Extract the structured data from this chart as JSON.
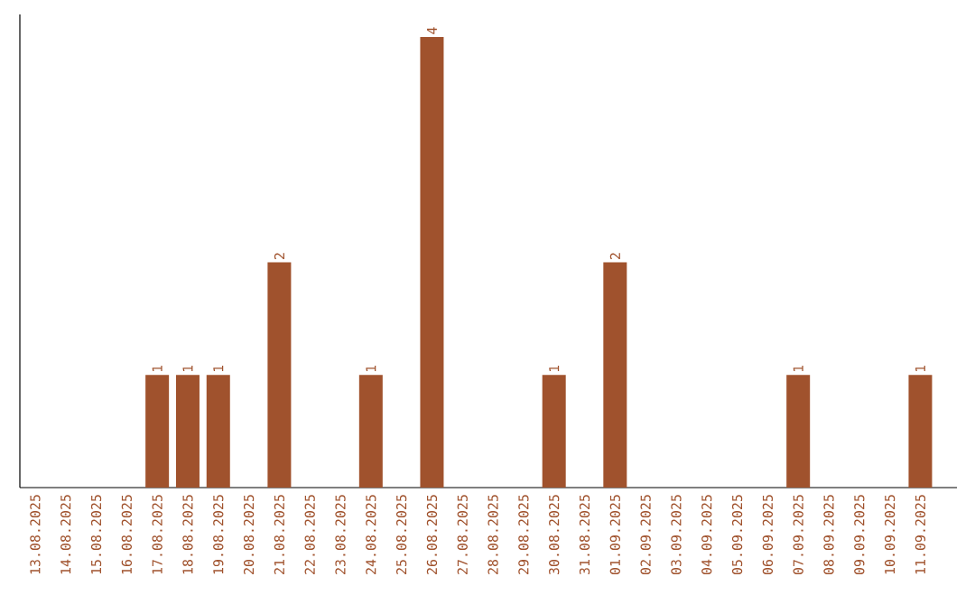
{
  "chart_data": {
    "type": "bar",
    "categories": [
      "13.08.2025",
      "14.08.2025",
      "15.08.2025",
      "16.08.2025",
      "17.08.2025",
      "18.08.2025",
      "19.08.2025",
      "20.08.2025",
      "21.08.2025",
      "22.08.2025",
      "23.08.2025",
      "24.08.2025",
      "25.08.2025",
      "26.08.2025",
      "27.08.2025",
      "28.08.2025",
      "29.08.2025",
      "30.08.2025",
      "31.08.2025",
      "01.09.2025",
      "02.09.2025",
      "03.09.2025",
      "04.09.2025",
      "05.09.2025",
      "06.09.2025",
      "07.09.2025",
      "08.09.2025",
      "09.09.2025",
      "10.09.2025",
      "11.09.2025"
    ],
    "values": [
      0,
      0,
      0,
      0,
      1,
      1,
      1,
      0,
      2,
      0,
      0,
      1,
      0,
      4,
      0,
      0,
      0,
      1,
      0,
      2,
      0,
      0,
      0,
      0,
      0,
      1,
      0,
      0,
      0,
      1
    ],
    "value_labels": [
      null,
      null,
      null,
      null,
      "1",
      "1",
      "1",
      null,
      "2",
      null,
      null,
      "1",
      null,
      "4",
      null,
      null,
      null,
      "1",
      null,
      "2",
      null,
      null,
      null,
      null,
      null,
      "1",
      null,
      null,
      null,
      "1"
    ],
    "color": "#a0522d",
    "ylim": [
      0,
      4.2
    ],
    "tick_labels": "x",
    "grid": false
  }
}
